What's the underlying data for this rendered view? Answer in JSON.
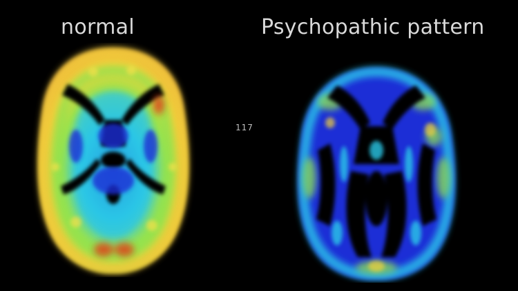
{
  "panels": {
    "left_title": "normal",
    "right_title": "Psychopathic pattern"
  },
  "slide_number": "117",
  "colors": {
    "background": "#000000",
    "title_text": "#d9d9d9",
    "scan_high": "#e23a12",
    "scan_mid_high": "#f2d13a",
    "scan_mid": "#9be34b",
    "scan_low": "#2bc8e8",
    "scan_lowest": "#1b2fd6"
  },
  "icons": {
    "left_scan": "brain-pet-scan-normal-image",
    "right_scan": "brain-pet-scan-psychopathic-image"
  }
}
